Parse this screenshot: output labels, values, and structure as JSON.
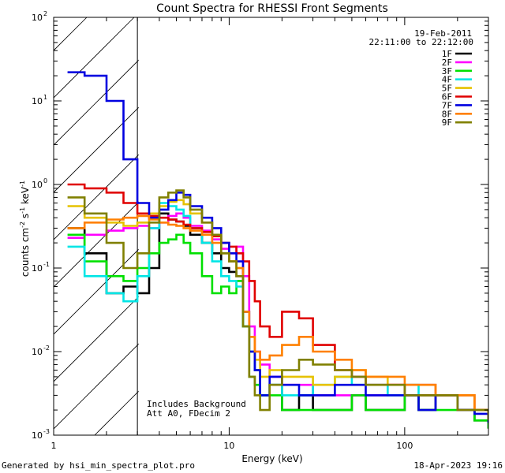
{
  "chart_data": {
    "type": "line",
    "title": "Count Spectra for RHESSI Front Segments",
    "xlabel": "Energy (keV)",
    "ylabel_parts": [
      "counts cm",
      "-2",
      " s",
      "-1",
      " keV",
      "-1"
    ],
    "xscale": "log",
    "yscale": "log",
    "xlim": [
      1,
      300
    ],
    "ylim": [
      0.001,
      100
    ],
    "x_tick_labels": [
      {
        "v": 1,
        "label": "1"
      },
      {
        "v": 10,
        "label": "10"
      },
      {
        "v": 100,
        "label": "100"
      }
    ],
    "y_tick_labels": [
      {
        "v": 0.001,
        "base": "10",
        "exp": "-3"
      },
      {
        "v": 0.01,
        "base": "10",
        "exp": "-2"
      },
      {
        "v": 0.1,
        "base": "10",
        "exp": "-1"
      },
      {
        "v": 1,
        "base": "10",
        "exp": "0"
      },
      {
        "v": 10,
        "base": "10",
        "exp": "1"
      },
      {
        "v": 100,
        "base": "10",
        "exp": "2"
      }
    ],
    "hatched_region_max_energy": 3,
    "date": "19-Feb-2011",
    "time_range": "22:11:00 to 22:12:00",
    "annotations": [
      "Includes Background",
      "Att A0, FDecim 2"
    ],
    "footer_left": "Generated by hsi_min_spectra_plot.pro",
    "footer_right": "18-Apr-2023 19:16",
    "series": [
      {
        "name": "1F",
        "color": "#000000",
        "x": [
          1.2,
          1.5,
          2.0,
          2.5,
          3.0,
          3.5,
          4.0,
          4.5,
          5.0,
          5.5,
          6.0,
          7.0,
          8.0,
          9.0,
          10.0,
          11.0,
          12.0,
          13.0,
          14.0,
          15.0,
          17.0,
          20.0,
          25.0,
          30.0,
          40.0,
          50.0,
          60.0,
          80.0,
          100.0,
          120.0,
          150.0,
          200.0,
          250.0,
          300.0
        ],
        "y": [
          0.3,
          0.15,
          0.05,
          0.06,
          0.05,
          0.1,
          0.45,
          0.38,
          0.36,
          0.32,
          0.25,
          0.2,
          0.15,
          0.1,
          0.09,
          0.08,
          0.02,
          0.01,
          0.006,
          0.003,
          0.004,
          0.002,
          0.003,
          0.002,
          0.002,
          0.003,
          0.002,
          0.002,
          0.003,
          0.002,
          0.003,
          0.002,
          0.0015,
          0.0012
        ]
      },
      {
        "name": "2F",
        "color": "#ff00ff",
        "x": [
          1.2,
          1.5,
          2.0,
          2.5,
          3.0,
          3.5,
          4.0,
          4.5,
          5.0,
          5.5,
          6.0,
          7.0,
          8.0,
          9.0,
          10.0,
          11.0,
          12.0,
          13.0,
          14.0,
          15.0,
          17.0,
          20.0,
          25.0,
          30.0,
          40.0,
          50.0,
          60.0,
          80.0,
          100.0,
          120.0,
          150.0,
          200.0,
          250.0,
          300.0
        ],
        "y": [
          0.23,
          0.25,
          0.28,
          0.3,
          0.32,
          0.3,
          0.35,
          0.42,
          0.45,
          0.4,
          0.32,
          0.28,
          0.22,
          0.17,
          0.15,
          0.18,
          0.08,
          0.02,
          0.01,
          0.007,
          0.005,
          0.004,
          0.004,
          0.003,
          0.003,
          0.003,
          0.003,
          0.004,
          0.004,
          0.004,
          0.003,
          0.003,
          0.002,
          0.0015
        ]
      },
      {
        "name": "3F",
        "color": "#00e000",
        "x": [
          1.2,
          1.5,
          2.0,
          2.5,
          3.0,
          3.5,
          4.0,
          4.5,
          5.0,
          5.5,
          6.0,
          7.0,
          8.0,
          9.0,
          10.0,
          11.0,
          12.0,
          13.0,
          14.0,
          15.0,
          17.0,
          20.0,
          25.0,
          30.0,
          40.0,
          50.0,
          60.0,
          80.0,
          100.0,
          120.0,
          150.0,
          200.0,
          250.0,
          300.0
        ],
        "y": [
          0.25,
          0.12,
          0.08,
          0.07,
          0.1,
          0.15,
          0.2,
          0.22,
          0.25,
          0.2,
          0.15,
          0.08,
          0.05,
          0.06,
          0.05,
          0.07,
          0.02,
          0.005,
          0.004,
          0.003,
          0.003,
          0.002,
          0.002,
          0.002,
          0.002,
          0.003,
          0.002,
          0.002,
          0.003,
          0.002,
          0.002,
          0.002,
          0.0015,
          0.0012
        ]
      },
      {
        "name": "4F",
        "color": "#00e5e5",
        "x": [
          1.2,
          1.5,
          2.0,
          2.5,
          3.0,
          3.5,
          4.0,
          4.5,
          5.0,
          5.5,
          6.0,
          7.0,
          8.0,
          9.0,
          10.0,
          11.0,
          12.0,
          13.0,
          14.0,
          15.0,
          17.0,
          20.0,
          25.0,
          30.0,
          40.0,
          50.0,
          60.0,
          80.0,
          100.0,
          120.0,
          150.0,
          200.0,
          250.0,
          300.0
        ],
        "y": [
          0.18,
          0.08,
          0.05,
          0.04,
          0.08,
          0.3,
          0.6,
          0.55,
          0.5,
          0.42,
          0.3,
          0.2,
          0.12,
          0.08,
          0.07,
          0.06,
          0.02,
          0.01,
          0.006,
          0.003,
          0.004,
          0.003,
          0.003,
          0.004,
          0.005,
          0.004,
          0.004,
          0.003,
          0.004,
          0.003,
          0.003,
          0.002,
          0.002,
          0.0015
        ]
      },
      {
        "name": "5F",
        "color": "#e6c200",
        "x": [
          1.2,
          1.5,
          2.0,
          2.5,
          3.0,
          3.5,
          4.0,
          4.5,
          5.0,
          5.5,
          6.0,
          7.0,
          8.0,
          9.0,
          10.0,
          11.0,
          12.0,
          13.0,
          14.0,
          15.0,
          17.0,
          20.0,
          25.0,
          30.0,
          40.0,
          50.0,
          60.0,
          80.0,
          100.0,
          120.0,
          150.0,
          200.0,
          250.0,
          300.0
        ],
        "y": [
          0.55,
          0.4,
          0.35,
          0.32,
          0.35,
          0.45,
          0.55,
          0.62,
          0.65,
          0.58,
          0.45,
          0.35,
          0.25,
          0.15,
          0.12,
          0.1,
          0.03,
          0.015,
          0.008,
          0.005,
          0.006,
          0.005,
          0.005,
          0.004,
          0.005,
          0.006,
          0.005,
          0.004,
          0.004,
          0.004,
          0.003,
          0.003,
          0.002,
          0.0015
        ]
      },
      {
        "name": "6F",
        "color": "#e00000",
        "x": [
          1.2,
          1.5,
          2.0,
          2.5,
          3.0,
          3.5,
          4.0,
          4.5,
          5.0,
          5.5,
          6.0,
          7.0,
          8.0,
          9.0,
          10.0,
          11.0,
          12.0,
          13.0,
          14.0,
          15.0,
          17.0,
          20.0,
          25.0,
          30.0,
          40.0,
          50.0,
          60.0,
          80.0,
          100.0,
          120.0,
          150.0,
          200.0,
          250.0,
          300.0
        ],
        "y": [
          1.0,
          0.9,
          0.8,
          0.6,
          0.45,
          0.42,
          0.4,
          0.38,
          0.36,
          0.33,
          0.3,
          0.27,
          0.24,
          0.2,
          0.18,
          0.15,
          0.12,
          0.07,
          0.04,
          0.02,
          0.015,
          0.03,
          0.025,
          0.012,
          0.006,
          0.005,
          0.004,
          0.004,
          0.003,
          0.003,
          0.003,
          0.002,
          0.002,
          0.0015
        ]
      },
      {
        "name": "7F",
        "color": "#0000e0",
        "x": [
          1.2,
          1.5,
          2.0,
          2.5,
          3.0,
          3.5,
          4.0,
          4.5,
          5.0,
          5.5,
          6.0,
          7.0,
          8.0,
          9.0,
          10.0,
          11.0,
          12.0,
          13.0,
          14.0,
          15.0,
          17.0,
          20.0,
          25.0,
          30.0,
          40.0,
          50.0,
          60.0,
          80.0,
          100.0,
          120.0,
          150.0,
          200.0,
          250.0,
          300.0
        ],
        "y": [
          22.0,
          20.0,
          10.0,
          2.0,
          0.6,
          0.4,
          0.5,
          0.65,
          0.8,
          0.75,
          0.55,
          0.4,
          0.3,
          0.2,
          0.15,
          0.12,
          0.03,
          0.01,
          0.006,
          0.003,
          0.005,
          0.004,
          0.003,
          0.003,
          0.004,
          0.004,
          0.003,
          0.003,
          0.003,
          0.002,
          0.003,
          0.002,
          0.0018,
          0.0014
        ]
      },
      {
        "name": "8F",
        "color": "#ff8000",
        "x": [
          1.2,
          1.5,
          2.0,
          2.5,
          3.0,
          3.5,
          4.0,
          4.5,
          5.0,
          5.5,
          6.0,
          7.0,
          8.0,
          9.0,
          10.0,
          11.0,
          12.0,
          13.0,
          14.0,
          15.0,
          17.0,
          20.0,
          25.0,
          30.0,
          40.0,
          50.0,
          60.0,
          80.0,
          100.0,
          120.0,
          150.0,
          200.0,
          250.0,
          300.0
        ],
        "y": [
          0.3,
          0.35,
          0.38,
          0.4,
          0.42,
          0.38,
          0.35,
          0.33,
          0.32,
          0.3,
          0.28,
          0.25,
          0.2,
          0.15,
          0.12,
          0.1,
          0.03,
          0.015,
          0.01,
          0.008,
          0.009,
          0.012,
          0.015,
          0.01,
          0.008,
          0.006,
          0.005,
          0.005,
          0.004,
          0.004,
          0.003,
          0.003,
          0.002,
          0.0018
        ]
      },
      {
        "name": "9F",
        "color": "#808000",
        "x": [
          1.2,
          1.5,
          2.0,
          2.5,
          3.0,
          3.5,
          4.0,
          4.5,
          5.0,
          5.5,
          6.0,
          7.0,
          8.0,
          9.0,
          10.0,
          11.0,
          12.0,
          13.0,
          14.0,
          15.0,
          17.0,
          20.0,
          25.0,
          30.0,
          40.0,
          50.0,
          60.0,
          80.0,
          100.0,
          120.0,
          150.0,
          200.0,
          250.0,
          300.0
        ],
        "y": [
          0.7,
          0.45,
          0.2,
          0.1,
          0.15,
          0.35,
          0.7,
          0.8,
          0.85,
          0.7,
          0.5,
          0.35,
          0.25,
          0.15,
          0.12,
          0.08,
          0.02,
          0.005,
          0.003,
          0.002,
          0.004,
          0.006,
          0.008,
          0.007,
          0.006,
          0.005,
          0.004,
          0.004,
          0.003,
          0.003,
          0.003,
          0.002,
          0.002,
          0.0015
        ]
      }
    ]
  }
}
